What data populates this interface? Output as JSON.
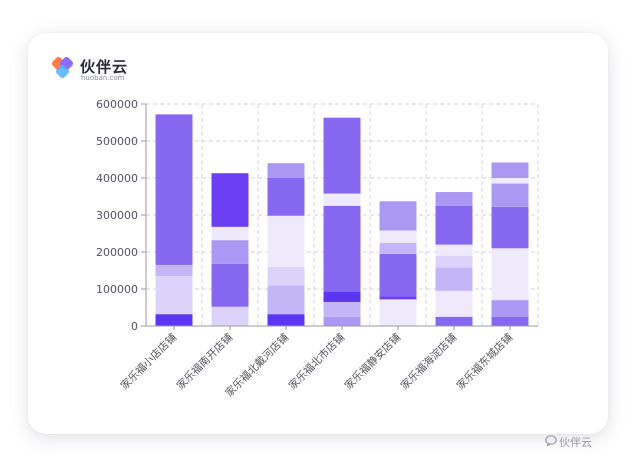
{
  "brand": {
    "name": "伙伴云",
    "url": "huoban.com"
  },
  "watermark": {
    "icon": "speech-bubble-icon",
    "text": "伙伴云"
  },
  "colors": {
    "palette": [
      "#5b35f0",
      "#6c3ff5",
      "#8667f0",
      "#ab98f2",
      "#c4b6f6",
      "#dcd3fa",
      "#eeeafc"
    ],
    "grid": "#d6d6de",
    "axis": "#9a9aa6",
    "label": "#555560"
  },
  "chart_data": {
    "type": "bar",
    "stacked": true,
    "grid": true,
    "grid_style": "dashed",
    "ylim": [
      0,
      600000
    ],
    "yticks": [
      "0",
      "100000",
      "200000",
      "300000",
      "400000",
      "500000",
      "600000"
    ],
    "categories": [
      "家乐福小店店铺",
      "家乐福南开店铺",
      "家乐福北戴河店铺",
      "家乐福北市店铺",
      "家乐福静安店铺",
      "家乐福海淀店铺",
      "家乐福东城店铺"
    ],
    "totals": [
      572000,
      413000,
      440000,
      563000,
      337000,
      362000,
      442000
    ],
    "segments": [
      [
        [
          0,
          32000,
          0
        ],
        [
          32000,
          135000,
          5
        ],
        [
          135000,
          165000,
          4
        ],
        [
          165000,
          572000,
          2
        ]
      ],
      [
        [
          0,
          52000,
          5
        ],
        [
          52000,
          168000,
          2
        ],
        [
          168000,
          232000,
          3
        ],
        [
          232000,
          268000,
          6
        ],
        [
          268000,
          413000,
          1
        ]
      ],
      [
        [
          0,
          32000,
          0
        ],
        [
          32000,
          110000,
          4
        ],
        [
          110000,
          160000,
          5
        ],
        [
          160000,
          298000,
          6
        ],
        [
          298000,
          400000,
          2
        ],
        [
          400000,
          440000,
          3
        ]
      ],
      [
        [
          0,
          25000,
          3
        ],
        [
          25000,
          65000,
          4
        ],
        [
          65000,
          93000,
          0
        ],
        [
          93000,
          325000,
          2
        ],
        [
          325000,
          358000,
          6
        ],
        [
          358000,
          563000,
          2
        ]
      ],
      [
        [
          0,
          72000,
          6
        ],
        [
          72000,
          80000,
          1
        ],
        [
          80000,
          195000,
          2
        ],
        [
          195000,
          225000,
          4
        ],
        [
          225000,
          258000,
          6
        ],
        [
          258000,
          337000,
          3
        ]
      ],
      [
        [
          0,
          25000,
          2
        ],
        [
          25000,
          95000,
          6
        ],
        [
          95000,
          158000,
          4
        ],
        [
          158000,
          190000,
          5
        ],
        [
          190000,
          220000,
          6
        ],
        [
          220000,
          325000,
          2
        ],
        [
          325000,
          362000,
          3
        ]
      ],
      [
        [
          0,
          25000,
          2
        ],
        [
          25000,
          70000,
          3
        ],
        [
          70000,
          210000,
          6
        ],
        [
          210000,
          322000,
          2
        ],
        [
          322000,
          385000,
          3
        ],
        [
          385000,
          400000,
          6
        ],
        [
          400000,
          442000,
          3
        ]
      ]
    ]
  }
}
